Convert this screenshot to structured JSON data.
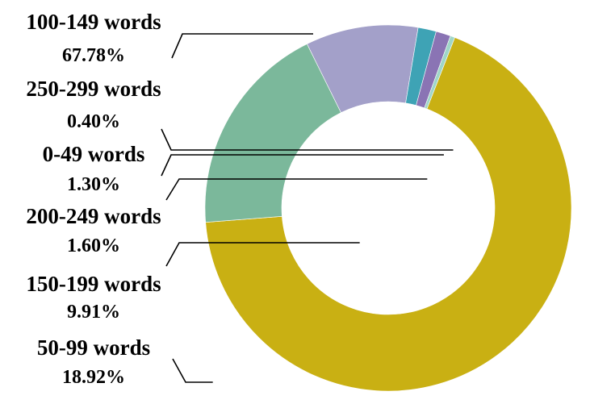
{
  "chart_data": {
    "type": "pie",
    "variant": "donut",
    "title": "",
    "start_angle_deg": -68.7,
    "direction": "clockwise",
    "slices": [
      {
        "label": "100-149 words",
        "percent_label": "67.78%",
        "value": 67.78,
        "color": "#c9b013"
      },
      {
        "label": "50-99 words",
        "percent_label": "18.92%",
        "value": 18.92,
        "color": "#7bb89b"
      },
      {
        "label": "150-199 words",
        "percent_label": "9.91%",
        "value": 9.91,
        "color": "#a3a0c9"
      },
      {
        "label": "200-249 words",
        "percent_label": "1.60%",
        "value": 1.6,
        "color": "#3ea3b5"
      },
      {
        "label": "0-49 words",
        "percent_label": "1.30%",
        "value": 1.3,
        "color": "#8a74b4"
      },
      {
        "label": "250-299 words",
        "percent_label": "0.40%",
        "value": 0.4,
        "color": "#9fd6c8"
      }
    ]
  }
}
